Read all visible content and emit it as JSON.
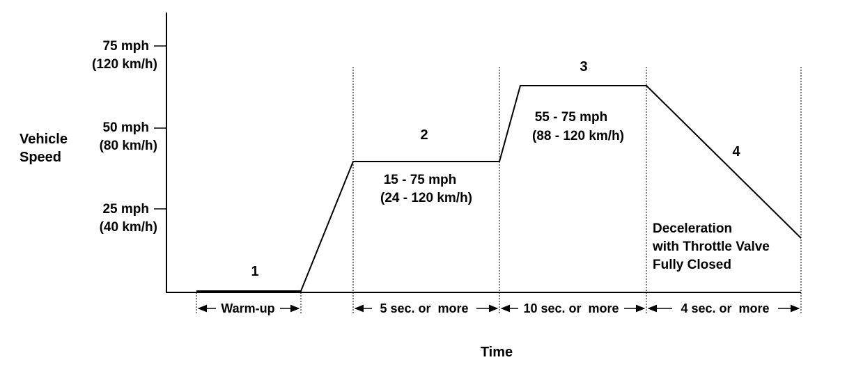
{
  "y_axis": {
    "label_line1": "Vehicle",
    "label_line2": "Speed"
  },
  "x_axis": {
    "label": "Time"
  },
  "y_ticks": [
    {
      "mph": "75 mph",
      "kmh": "(120 km/h)",
      "value": 75
    },
    {
      "mph": "50 mph",
      "kmh": "(80 km/h)",
      "value": 50
    },
    {
      "mph": "25 mph",
      "kmh": "(40 km/h)",
      "value": 25
    }
  ],
  "phases": [
    {
      "number": "1",
      "duration": "Warm-up"
    },
    {
      "number": "2",
      "range_mph": "15 - 75 mph",
      "range_kmh": "(24 - 120 km/h)",
      "duration": "5 sec. or  more"
    },
    {
      "number": "3",
      "range_mph": "55 - 75 mph",
      "range_kmh": "(88 - 120 km/h)",
      "duration": "10 sec. or  more"
    },
    {
      "number": "4",
      "note_line1": "Deceleration",
      "note_line2": "with Throttle Valve",
      "note_line3": "Fully Closed",
      "duration": "4 sec. or  more"
    }
  ],
  "profile_speeds_mph": [
    0,
    0,
    40,
    40,
    63,
    63,
    17
  ]
}
